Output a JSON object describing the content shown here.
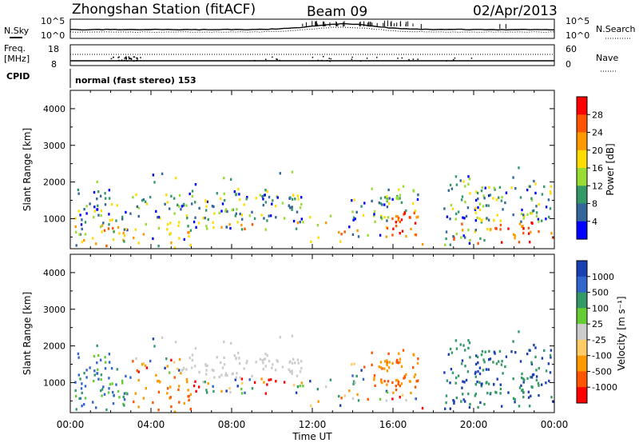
{
  "header": {
    "station": "Zhongshan Station (fitACF)",
    "beam": "Beam 09",
    "date": "02/Apr/2013"
  },
  "panels": {
    "nsky_label": "N.Sky",
    "nsearch_label": "N.Search",
    "freq_label_1": "Freq.",
    "freq_label_2": "[MHz]",
    "nave_label": "Nave",
    "cpid_label": "CPID",
    "cpid_text": "normal (fast stereo) 153",
    "noise_ticks_left": [
      "10^5",
      "10^0"
    ],
    "noise_ticks_right": [
      "10^5",
      "10^0"
    ],
    "freq_ticks": [
      "18",
      "8"
    ],
    "nave_ticks": [
      "60",
      "0"
    ]
  },
  "chart_data": [
    {
      "type": "heatmap",
      "name": "power",
      "xlabel": "Time UT",
      "ylabel": "Slant Range [km]",
      "xlim": [
        0,
        24
      ],
      "ylim": [
        180,
        4500
      ],
      "xticks": [
        "00:00",
        "04:00",
        "08:00",
        "12:00",
        "16:00",
        "20:00",
        "00:00"
      ],
      "yticks": [
        "1000",
        "2000",
        "3000",
        "4000"
      ],
      "colorbar": {
        "label": "Power [dB]",
        "ticks": [
          "28",
          "24",
          "20",
          "16",
          "12",
          "8",
          "4"
        ],
        "colors": [
          "#ff0000",
          "#ff5500",
          "#ff9900",
          "#ffdd00",
          "#99dd33",
          "#339966",
          "#336699",
          "#0000ff"
        ]
      }
    },
    {
      "type": "heatmap",
      "name": "velocity",
      "xlabel": "Time UT",
      "ylabel": "Slant Range [km]",
      "xlim": [
        0,
        24
      ],
      "ylim": [
        180,
        4500
      ],
      "xticks": [
        "00:00",
        "04:00",
        "08:00",
        "12:00",
        "16:00",
        "20:00",
        "00:00"
      ],
      "yticks": [
        "1000",
        "2000",
        "3000",
        "4000"
      ],
      "colorbar": {
        "label": "Velocity [m s⁻¹]",
        "ticks": [
          "1000",
          "500",
          "100",
          "25",
          "-25",
          "-100",
          "-500",
          "-1000"
        ],
        "colors": [
          "#1a3fb0",
          "#3366cc",
          "#339966",
          "#66cc33",
          "#cccccc",
          "#ffcc66",
          "#ff9900",
          "#ff5500",
          "#ff0000"
        ]
      }
    }
  ]
}
